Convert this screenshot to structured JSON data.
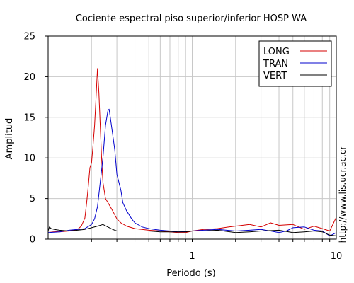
{
  "chart_data": {
    "type": "line",
    "title": "Cociente espectral piso superior/inferior  HOSP WA",
    "xlabel": "Periodo (s)",
    "ylabel": "Amplitud",
    "x_scale": "log",
    "xlim": [
      0.1,
      10
    ],
    "ylim": [
      0,
      25
    ],
    "x_tick_labels": [
      {
        "value": 1,
        "label": "1"
      },
      {
        "value": 10,
        "label": "10"
      }
    ],
    "y_ticks": [
      0,
      5,
      10,
      15,
      20,
      25
    ],
    "grid": true,
    "legend_position": "top-right",
    "watermark": "http://www.lis.ucr.ac.cr",
    "series": [
      {
        "name": "LONG",
        "color": "#d40000",
        "points": [
          [
            0.1,
            1.0
          ],
          [
            0.12,
            0.9
          ],
          [
            0.14,
            1.0
          ],
          [
            0.16,
            1.2
          ],
          [
            0.17,
            1.6
          ],
          [
            0.18,
            2.6
          ],
          [
            0.185,
            4.5
          ],
          [
            0.19,
            6.5
          ],
          [
            0.195,
            8.8
          ],
          [
            0.2,
            9.4
          ],
          [
            0.205,
            11.5
          ],
          [
            0.21,
            14.0
          ],
          [
            0.215,
            17.5
          ],
          [
            0.22,
            21.0
          ],
          [
            0.225,
            18.0
          ],
          [
            0.23,
            14.0
          ],
          [
            0.235,
            10.0
          ],
          [
            0.24,
            7.0
          ],
          [
            0.25,
            5.0
          ],
          [
            0.26,
            4.5
          ],
          [
            0.27,
            4.0
          ],
          [
            0.28,
            3.5
          ],
          [
            0.3,
            2.5
          ],
          [
            0.32,
            2.0
          ],
          [
            0.35,
            1.6
          ],
          [
            0.4,
            1.3
          ],
          [
            0.5,
            1.1
          ],
          [
            0.6,
            1.0
          ],
          [
            0.7,
            0.9
          ],
          [
            0.8,
            0.8
          ],
          [
            0.9,
            0.8
          ],
          [
            1.0,
            1.0
          ],
          [
            1.2,
            1.2
          ],
          [
            1.5,
            1.3
          ],
          [
            1.8,
            1.5
          ],
          [
            2.0,
            1.6
          ],
          [
            2.5,
            1.8
          ],
          [
            3.0,
            1.5
          ],
          [
            3.5,
            2.0
          ],
          [
            4.0,
            1.7
          ],
          [
            5.0,
            1.8
          ],
          [
            6.0,
            1.2
          ],
          [
            7.0,
            1.6
          ],
          [
            8.0,
            1.3
          ],
          [
            9.0,
            1.0
          ],
          [
            10.0,
            2.7
          ]
        ]
      },
      {
        "name": "TRAN",
        "color": "#0000cc",
        "points": [
          [
            0.1,
            0.8
          ],
          [
            0.12,
            0.9
          ],
          [
            0.14,
            1.1
          ],
          [
            0.16,
            1.2
          ],
          [
            0.18,
            1.3
          ],
          [
            0.2,
            1.8
          ],
          [
            0.21,
            2.5
          ],
          [
            0.22,
            4.0
          ],
          [
            0.23,
            7.0
          ],
          [
            0.24,
            10.0
          ],
          [
            0.25,
            14.0
          ],
          [
            0.26,
            15.8
          ],
          [
            0.265,
            16.0
          ],
          [
            0.27,
            15.0
          ],
          [
            0.28,
            13.0
          ],
          [
            0.29,
            11.0
          ],
          [
            0.3,
            8.0
          ],
          [
            0.32,
            6.0
          ],
          [
            0.33,
            4.5
          ],
          [
            0.35,
            3.5
          ],
          [
            0.38,
            2.5
          ],
          [
            0.4,
            2.0
          ],
          [
            0.45,
            1.5
          ],
          [
            0.5,
            1.3
          ],
          [
            0.6,
            1.1
          ],
          [
            0.7,
            1.0
          ],
          [
            0.8,
            0.9
          ],
          [
            1.0,
            1.0
          ],
          [
            1.2,
            1.1
          ],
          [
            1.5,
            1.2
          ],
          [
            2.0,
            1.0
          ],
          [
            2.5,
            1.1
          ],
          [
            3.0,
            1.2
          ],
          [
            3.5,
            1.0
          ],
          [
            4.0,
            0.8
          ],
          [
            4.5,
            1.0
          ],
          [
            5.0,
            1.4
          ],
          [
            6.0,
            1.5
          ],
          [
            7.0,
            1.1
          ],
          [
            8.0,
            1.0
          ],
          [
            9.0,
            0.4
          ],
          [
            10.0,
            0.8
          ]
        ]
      },
      {
        "name": "VERT",
        "color": "#000000",
        "points": [
          [
            0.1,
            1.0
          ],
          [
            0.102,
            1.5
          ],
          [
            0.105,
            1.3
          ],
          [
            0.11,
            1.2
          ],
          [
            0.12,
            1.1
          ],
          [
            0.14,
            1.0
          ],
          [
            0.16,
            1.1
          ],
          [
            0.18,
            1.2
          ],
          [
            0.2,
            1.4
          ],
          [
            0.22,
            1.6
          ],
          [
            0.24,
            1.8
          ],
          [
            0.26,
            1.5
          ],
          [
            0.28,
            1.2
          ],
          [
            0.3,
            1.0
          ],
          [
            0.35,
            1.0
          ],
          [
            0.4,
            1.0
          ],
          [
            0.5,
            1.0
          ],
          [
            0.6,
            0.9
          ],
          [
            0.7,
            0.9
          ],
          [
            0.8,
            0.9
          ],
          [
            0.9,
            0.9
          ],
          [
            1.0,
            1.0
          ],
          [
            1.2,
            1.0
          ],
          [
            1.5,
            1.1
          ],
          [
            2.0,
            0.8
          ],
          [
            2.5,
            0.9
          ],
          [
            3.0,
            1.0
          ],
          [
            4.0,
            1.1
          ],
          [
            5.0,
            0.8
          ],
          [
            6.0,
            0.9
          ],
          [
            7.0,
            1.0
          ],
          [
            8.0,
            0.9
          ],
          [
            9.0,
            0.5
          ],
          [
            10.0,
            0.4
          ]
        ]
      }
    ]
  }
}
